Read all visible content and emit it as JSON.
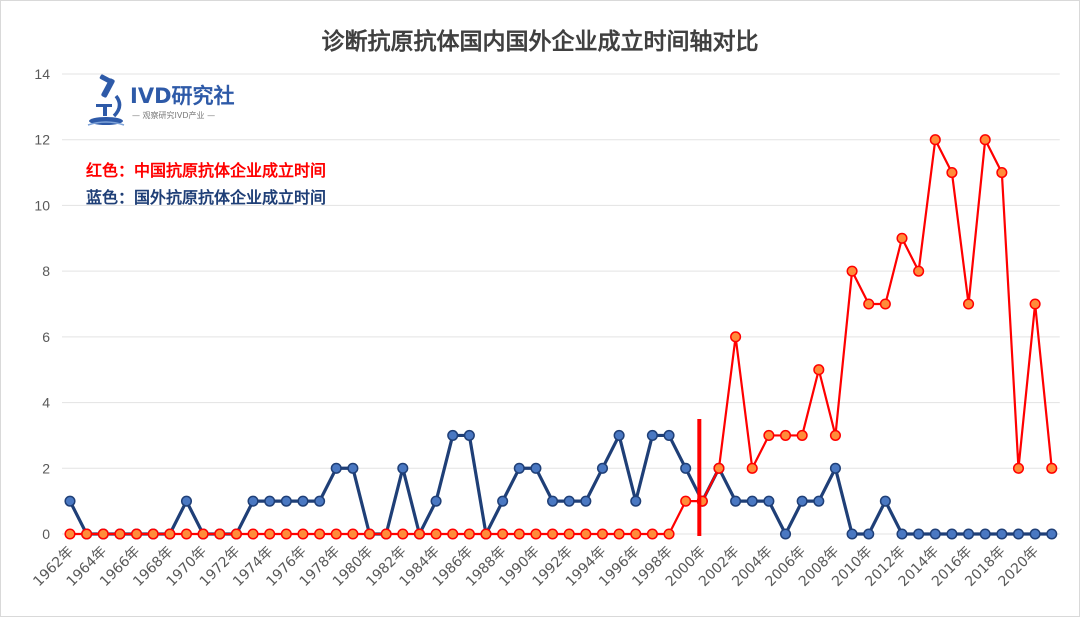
{
  "chart_data": {
    "type": "line",
    "title": "诊断抗原抗体国内国外企业成立时间轴对比",
    "xlabel": "",
    "ylabel": "",
    "ylim": [
      0,
      14
    ],
    "yticks": [
      0,
      2,
      4,
      6,
      8,
      10,
      12,
      14
    ],
    "grid": "horizontal",
    "x": [
      1962,
      1963,
      1964,
      1965,
      1966,
      1967,
      1968,
      1969,
      1970,
      1971,
      1972,
      1973,
      1974,
      1975,
      1976,
      1977,
      1978,
      1979,
      1980,
      1981,
      1982,
      1983,
      1984,
      1985,
      1986,
      1987,
      1988,
      1989,
      1990,
      1991,
      1992,
      1993,
      1994,
      1995,
      1996,
      1997,
      1998,
      1999,
      2000,
      2001,
      2002,
      2003,
      2004,
      2005,
      2006,
      2007,
      2008,
      2009,
      2010,
      2011,
      2012,
      2013,
      2014,
      2015,
      2016,
      2017,
      2018,
      2019,
      2020,
      2021
    ],
    "tick_labels": [
      "1962年",
      "1964年",
      "1966年",
      "1968年",
      "1970年",
      "1972年",
      "1974年",
      "1976年",
      "1978年",
      "1980年",
      "1982年",
      "1984年",
      "1986年",
      "1988年",
      "1990年",
      "1992年",
      "1994年",
      "1996年",
      "1998年",
      "2000年",
      "2002年",
      "2004年",
      "2006年",
      "2008年",
      "2010年",
      "2012年",
      "2014年",
      "2016年",
      "2018年",
      "2020年"
    ],
    "series": [
      {
        "name": "国外",
        "color": "#1f3f77",
        "values": [
          1,
          0,
          0,
          0,
          0,
          0,
          0,
          1,
          0,
          0,
          0,
          1,
          1,
          1,
          1,
          1,
          2,
          2,
          0,
          0,
          2,
          0,
          1,
          3,
          3,
          0,
          1,
          2,
          2,
          1,
          1,
          1,
          2,
          3,
          1,
          3,
          3,
          2,
          1,
          2,
          1,
          1,
          1,
          0,
          1,
          1,
          2,
          0,
          0,
          1,
          0,
          0,
          0,
          0,
          0,
          0,
          0,
          0,
          0,
          0
        ]
      },
      {
        "name": "中国",
        "color": "#ff0000",
        "values": [
          0,
          0,
          0,
          0,
          0,
          0,
          0,
          0,
          0,
          0,
          0,
          0,
          0,
          0,
          0,
          0,
          0,
          0,
          0,
          0,
          0,
          0,
          0,
          0,
          0,
          0,
          0,
          0,
          0,
          0,
          0,
          0,
          0,
          0,
          0,
          0,
          0,
          1,
          1,
          2,
          6,
          2,
          3,
          3,
          3,
          5,
          3,
          8,
          7,
          7,
          9,
          8,
          12,
          11,
          7,
          12,
          11,
          2,
          7,
          2
        ]
      }
    ],
    "marker_year": 2000,
    "legend": {
      "red": "红色：中国抗原抗体企业成立时间",
      "blue": "蓝色：国外抗原抗体企业成立时间"
    }
  },
  "logo": {
    "name": "IVD研究社",
    "tagline": "— 观察研究IVD产业 —",
    "icon": "microscope-icon"
  }
}
